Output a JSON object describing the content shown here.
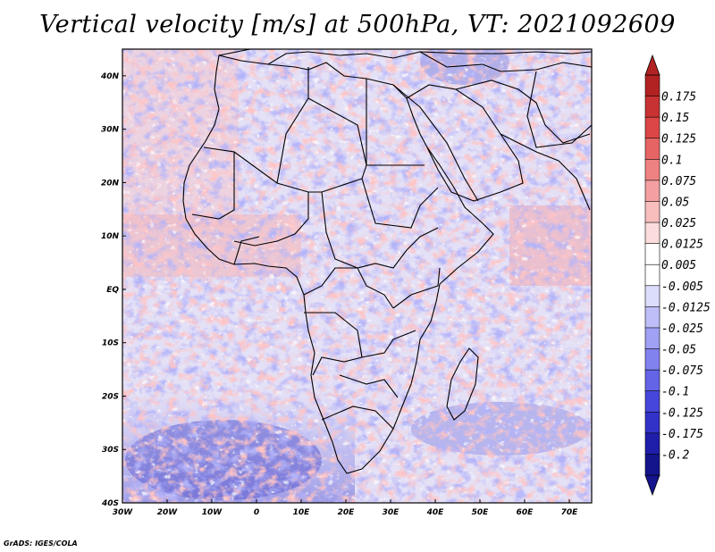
{
  "title": "Vertical velocity [m/s] at 500hPa, VT: 2021092609",
  "footer": "GrADS: IGES/COLA",
  "axes": {
    "lon_labels": [
      "30W",
      "20W",
      "10W",
      "0",
      "10E",
      "20E",
      "30E",
      "40E",
      "50E",
      "60E",
      "70E"
    ],
    "lat_labels": [
      "40N",
      "30N",
      "20N",
      "10N",
      "EQ",
      "10S",
      "20S",
      "30S",
      "40S"
    ],
    "lon_range": [
      -30,
      75
    ],
    "lat_range": [
      -40,
      45
    ]
  },
  "colorbar": {
    "levels": [
      "0.175",
      "0.15",
      "0.125",
      "0.1",
      "0.075",
      "0.05",
      "0.025",
      "0.0125",
      "0.005",
      "-0.005",
      "-0.0125",
      "-0.025",
      "-0.05",
      "-0.075",
      "-0.1",
      "-0.125",
      "-0.175",
      "-0.2"
    ],
    "colors": [
      "#b22222",
      "#c83232",
      "#dc4646",
      "#e66464",
      "#ee8282",
      "#f4a0a0",
      "#f8bebe",
      "#fcdcdc",
      "#ffffff",
      "#ffffff",
      "#dcdcfc",
      "#bebef8",
      "#a0a0f4",
      "#8282ee",
      "#6464e6",
      "#4646dc",
      "#3232c8",
      "#1e1eaa",
      "#14148c"
    ]
  },
  "colors": {
    "ocean_base": "#e8e4f4",
    "land_base": "#dcd8f4",
    "border": "#000000"
  }
}
